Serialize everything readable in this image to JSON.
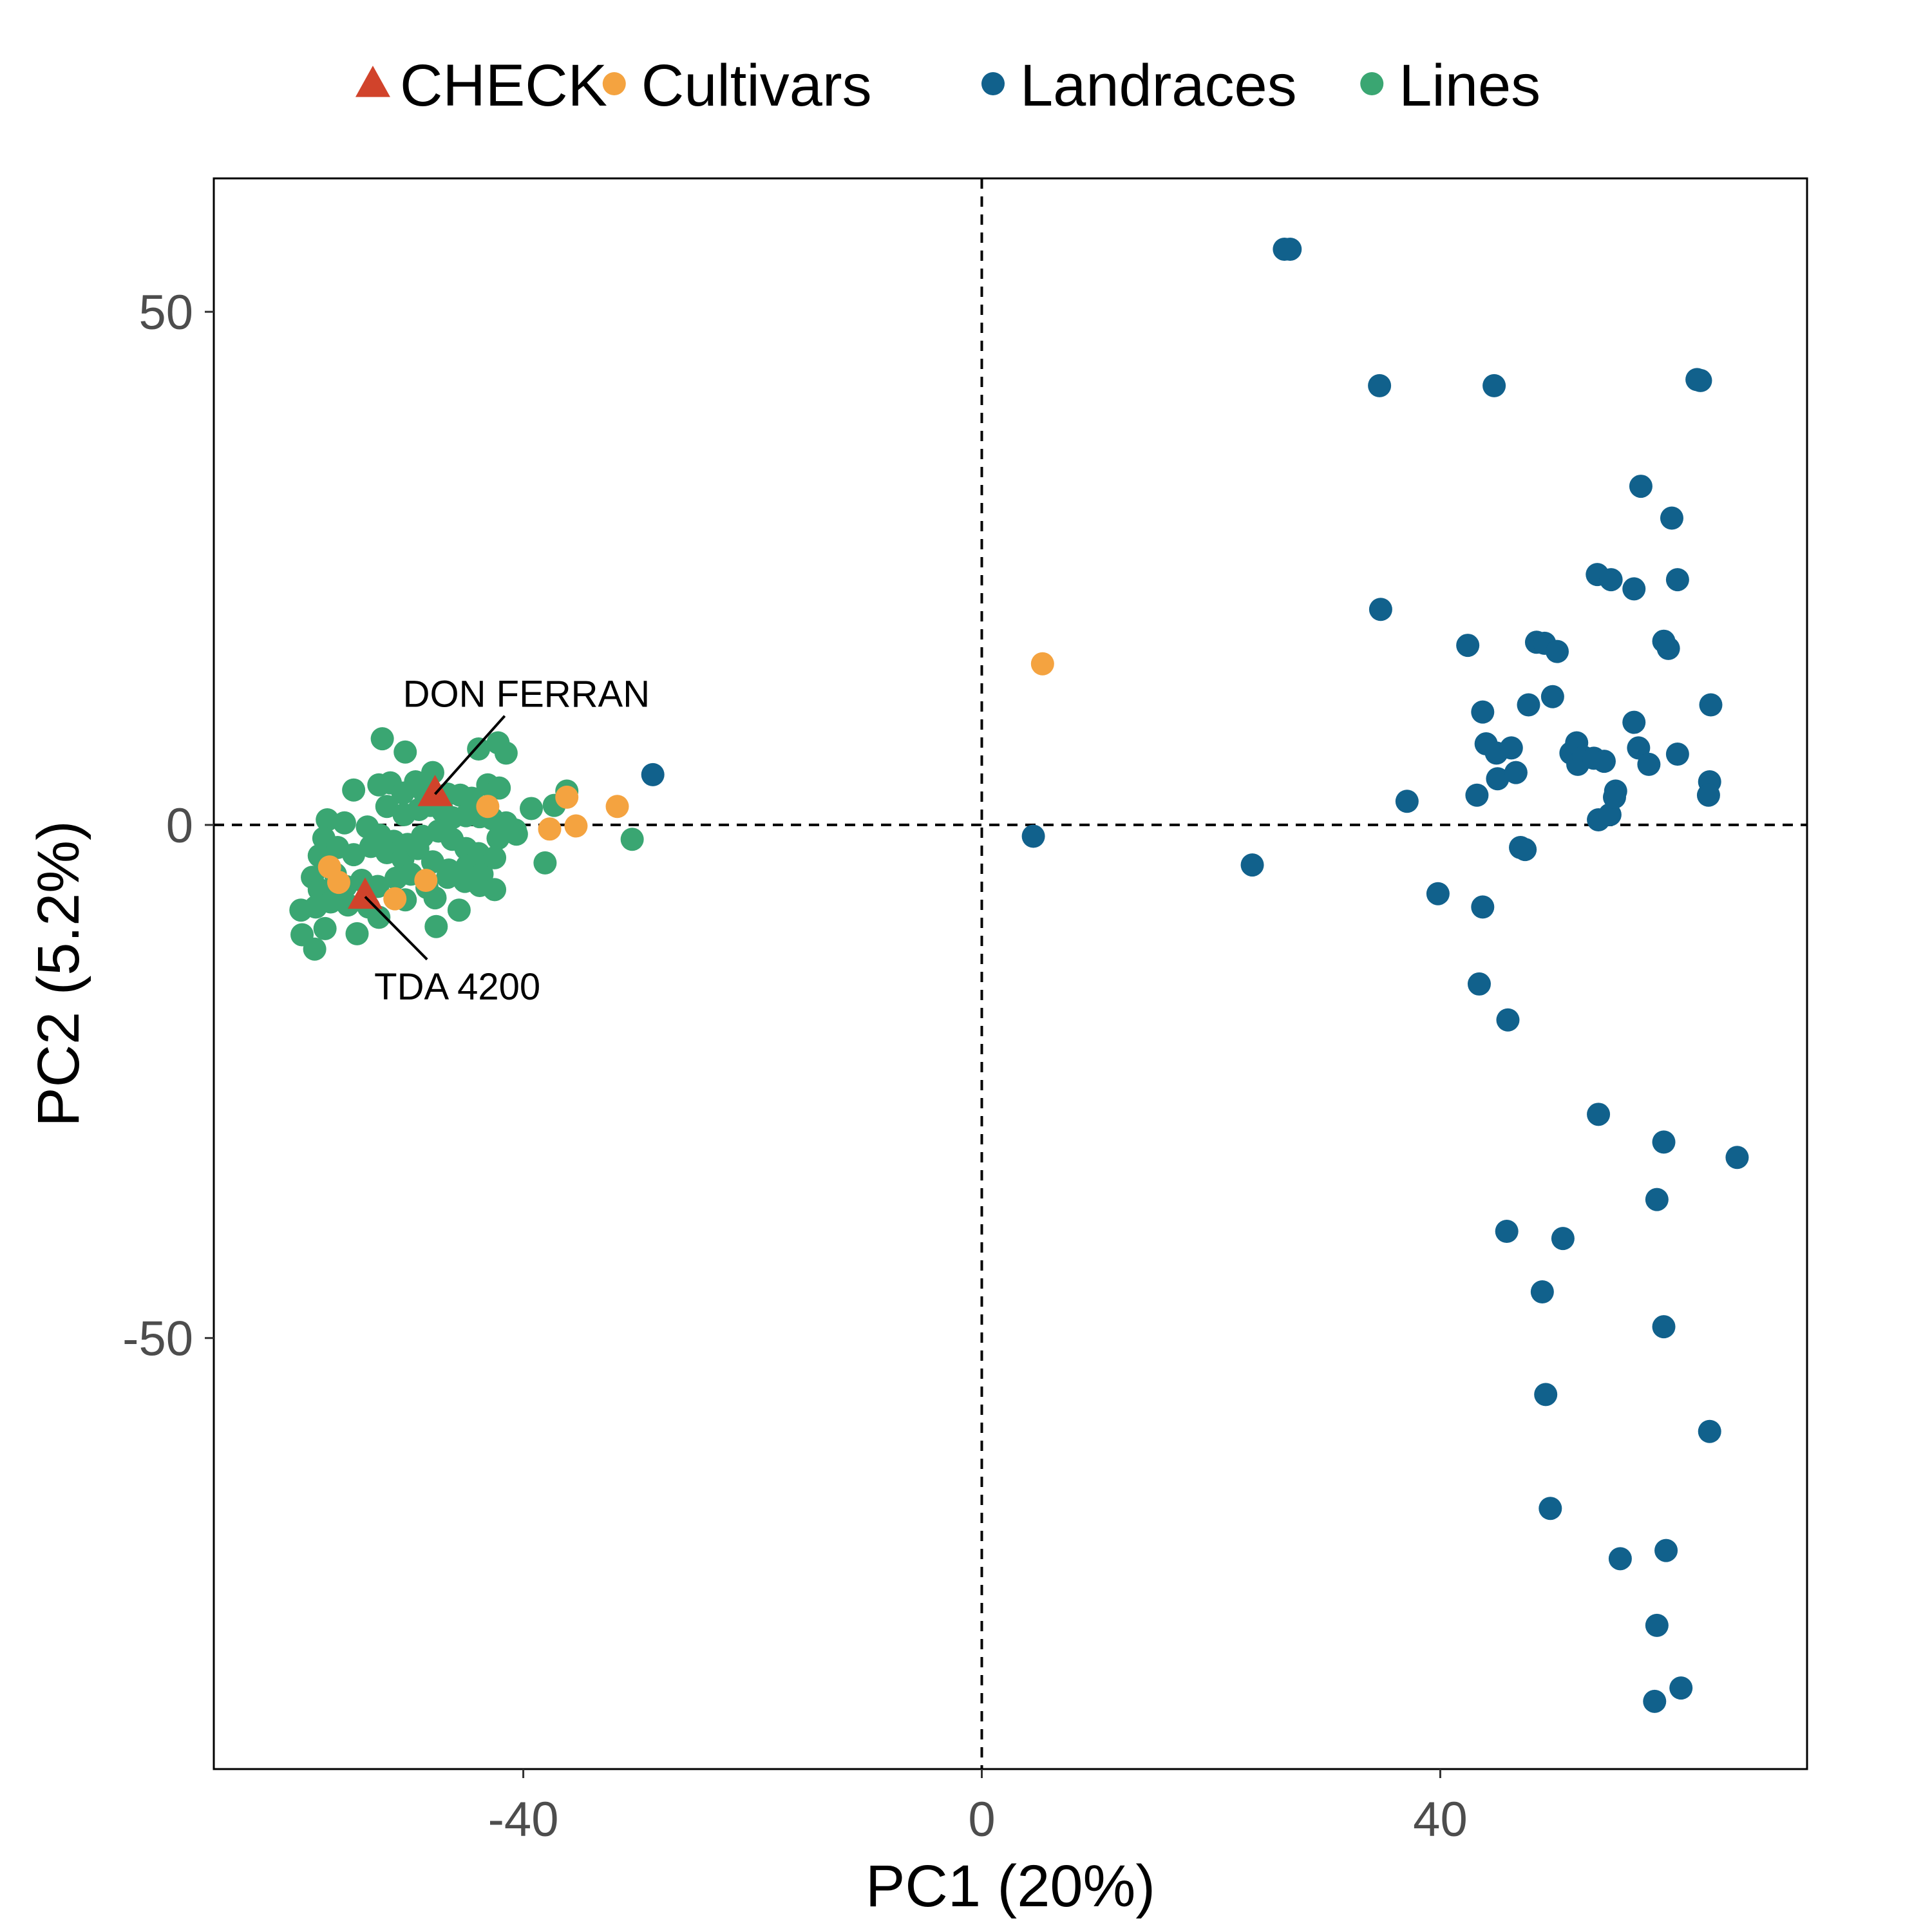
{
  "chart_data": {
    "type": "scatter",
    "title": "",
    "xlabel": "PC1 (20%)",
    "ylabel": "PC2 (5.2%)",
    "xlim": [
      -67,
      72
    ],
    "ylim": [
      -92,
      63
    ],
    "xticks": [
      -40,
      0,
      40
    ],
    "yticks": [
      -50,
      0,
      50
    ],
    "grid": false,
    "reference_lines": {
      "x": 0,
      "y": 0,
      "style": "dashed"
    },
    "legend": {
      "position": "top",
      "entries": [
        {
          "name": "CHECK",
          "shape": "triangle",
          "color": "#d1432b"
        },
        {
          "name": "Cultivars",
          "shape": "circle",
          "color": "#f4a340"
        },
        {
          "name": "Landraces",
          "shape": "circle",
          "color": "#11618c"
        },
        {
          "name": "Lines",
          "shape": "circle",
          "color": "#3aa672"
        }
      ]
    },
    "annotations": [
      {
        "text": "DON FERRAN",
        "x": -47.7,
        "y": 3.0,
        "label_x": -50.5,
        "label_y": 11.5
      },
      {
        "text": "TDA 4200",
        "x": -53.8,
        "y": -7.0,
        "label_x": -53.0,
        "label_y": -17.0
      }
    ],
    "series": [
      {
        "name": "CHECK",
        "shape": "triangle",
        "color": "#d1432b",
        "points": [
          [
            -47.7,
            3.0
          ],
          [
            -53.8,
            -7.0
          ]
        ]
      },
      {
        "name": "Cultivars",
        "shape": "circle",
        "color": "#f4a340",
        "points": [
          [
            5.3,
            15.7
          ],
          [
            -43.1,
            1.8
          ],
          [
            -36.2,
            2.7
          ],
          [
            -31.8,
            1.8
          ],
          [
            -37.7,
            -0.4
          ],
          [
            -35.4,
            -0.1
          ],
          [
            -56.9,
            -4.1
          ],
          [
            -56.1,
            -5.6
          ],
          [
            -51.2,
            -7.2
          ],
          [
            -48.5,
            -5.4
          ]
        ]
      },
      {
        "name": "Landraces",
        "shape": "circle",
        "color": "#11618c",
        "points": [
          [
            -28.7,
            4.9
          ],
          [
            4.5,
            -1.1
          ],
          [
            23.6,
            -3.9
          ],
          [
            26.4,
            56.1
          ],
          [
            26.9,
            56.1
          ],
          [
            34.7,
            42.8
          ],
          [
            34.8,
            21.0
          ],
          [
            44.7,
            42.8
          ],
          [
            62.4,
            43.4
          ],
          [
            62.7,
            43.3
          ],
          [
            37.1,
            2.3
          ],
          [
            39.8,
            -6.7
          ],
          [
            43.2,
            2.9
          ],
          [
            42.4,
            17.5
          ],
          [
            43.7,
            11.0
          ],
          [
            44.0,
            7.9
          ],
          [
            44.9,
            7.0
          ],
          [
            46.2,
            7.5
          ],
          [
            45.0,
            4.5
          ],
          [
            46.6,
            5.1
          ],
          [
            47.0,
            -2.2
          ],
          [
            47.4,
            -2.4
          ],
          [
            47.7,
            11.7
          ],
          [
            48.4,
            17.8
          ],
          [
            49.1,
            17.7
          ],
          [
            49.8,
            12.5
          ],
          [
            50.2,
            16.9
          ],
          [
            43.4,
            -15.5
          ],
          [
            43.7,
            -8.0
          ],
          [
            45.9,
            -19.0
          ],
          [
            51.4,
            7.0
          ],
          [
            51.9,
            8.0
          ],
          [
            52.0,
            5.9
          ],
          [
            52.5,
            6.6
          ],
          [
            53.4,
            6.5
          ],
          [
            54.3,
            6.2
          ],
          [
            56.9,
            10.0
          ],
          [
            57.3,
            7.5
          ],
          [
            55.3,
            3.3
          ],
          [
            53.8,
            0.5
          ],
          [
            54.8,
            1.0
          ],
          [
            55.2,
            2.7
          ],
          [
            53.7,
            24.4
          ],
          [
            54.9,
            23.9
          ],
          [
            56.9,
            23.0
          ],
          [
            58.2,
            5.9
          ],
          [
            59.5,
            17.9
          ],
          [
            59.9,
            17.2
          ],
          [
            57.5,
            33.0
          ],
          [
            60.2,
            29.9
          ],
          [
            60.7,
            6.9
          ],
          [
            63.6,
            11.7
          ],
          [
            63.5,
            4.2
          ],
          [
            63.4,
            2.9
          ],
          [
            60.7,
            23.9
          ],
          [
            53.8,
            -28.2
          ],
          [
            59.5,
            -30.9
          ],
          [
            65.9,
            -32.4
          ],
          [
            45.8,
            -39.6
          ],
          [
            58.9,
            -36.5
          ],
          [
            50.7,
            -40.3
          ],
          [
            48.9,
            -45.5
          ],
          [
            49.2,
            -55.5
          ],
          [
            59.5,
            -48.9
          ],
          [
            63.5,
            -59.1
          ],
          [
            49.6,
            -66.6
          ],
          [
            55.7,
            -71.5
          ],
          [
            59.7,
            -70.7
          ],
          [
            58.9,
            -78.0
          ],
          [
            58.7,
            -85.4
          ],
          [
            61.0,
            -84.1
          ]
        ]
      },
      {
        "name": "Lines",
        "shape": "circle",
        "color": "#3aa672",
        "points": [
          [
            -52.3,
            8.4
          ],
          [
            -50.3,
            7.1
          ],
          [
            -47.9,
            5.1
          ],
          [
            -43.9,
            7.4
          ],
          [
            -42.2,
            8.0
          ],
          [
            -41.5,
            7.0
          ],
          [
            -54.8,
            3.4
          ],
          [
            -52.6,
            3.9
          ],
          [
            -51.6,
            4.1
          ],
          [
            -50.5,
            3.1
          ],
          [
            -49.4,
            4.2
          ],
          [
            -48.7,
            3.3
          ],
          [
            -46.6,
            3.0
          ],
          [
            -45.5,
            2.9
          ],
          [
            -44.5,
            2.6
          ],
          [
            -43.1,
            3.9
          ],
          [
            -42.1,
            3.6
          ],
          [
            -51.9,
            1.8
          ],
          [
            -50.4,
            1.0
          ],
          [
            -49.1,
            1.5
          ],
          [
            -48.1,
            1.9
          ],
          [
            -47.0,
            1.3
          ],
          [
            -46.2,
            0.7
          ],
          [
            -45.0,
            0.9
          ],
          [
            -43.8,
            0.8
          ],
          [
            -42.7,
            0.6
          ],
          [
            -41.5,
            0.2
          ],
          [
            -40.7,
            -0.5
          ],
          [
            -39.3,
            1.6
          ],
          [
            -37.3,
            1.9
          ],
          [
            -36.2,
            3.3
          ],
          [
            -57.1,
            0.5
          ],
          [
            -55.6,
            0.2
          ],
          [
            -53.6,
            -0.2
          ],
          [
            -52.5,
            -1.0
          ],
          [
            -51.3,
            -1.6
          ],
          [
            -50.1,
            -1.9
          ],
          [
            -48.8,
            -1.1
          ],
          [
            -47.4,
            -0.6
          ],
          [
            -46.2,
            -1.4
          ],
          [
            -45.0,
            -2.3
          ],
          [
            -43.9,
            -2.8
          ],
          [
            -42.2,
            -1.3
          ],
          [
            -40.6,
            -0.9
          ],
          [
            -57.4,
            -1.3
          ],
          [
            -56.2,
            -2.2
          ],
          [
            -54.8,
            -2.9
          ],
          [
            -53.3,
            -2.1
          ],
          [
            -51.9,
            -2.7
          ],
          [
            -50.5,
            -3.3
          ],
          [
            -49.2,
            -2.3
          ],
          [
            -47.9,
            -3.6
          ],
          [
            -46.5,
            -4.4
          ],
          [
            -44.9,
            -4.0
          ],
          [
            -43.6,
            -4.8
          ],
          [
            -42.5,
            -3.2
          ],
          [
            -57.8,
            -3.0
          ],
          [
            -56.4,
            -4.8
          ],
          [
            -55.5,
            -6.0
          ],
          [
            -54.1,
            -5.4
          ],
          [
            -52.7,
            -6.0
          ],
          [
            -51.1,
            -5.2
          ],
          [
            -49.8,
            -4.8
          ],
          [
            -48.4,
            -6.1
          ],
          [
            -46.6,
            -5.1
          ],
          [
            -45.1,
            -5.5
          ],
          [
            -43.8,
            -5.9
          ],
          [
            -42.5,
            -6.3
          ],
          [
            -58.4,
            -5.1
          ],
          [
            -57.8,
            -6.3
          ],
          [
            -56.8,
            -7.5
          ],
          [
            -55.3,
            -7.8
          ],
          [
            -53.5,
            -8.0
          ],
          [
            -59.4,
            -8.3
          ],
          [
            -58.1,
            -8.0
          ],
          [
            -50.3,
            -7.3
          ],
          [
            -47.7,
            -7.1
          ],
          [
            -45.6,
            -8.3
          ],
          [
            -59.3,
            -10.7
          ],
          [
            -58.2,
            -12.1
          ],
          [
            -57.3,
            -10.1
          ],
          [
            -54.5,
            -10.6
          ],
          [
            -52.6,
            -9.0
          ],
          [
            -47.6,
            -9.9
          ],
          [
            -38.1,
            -3.7
          ],
          [
            -30.5,
            -1.4
          ]
        ]
      }
    ]
  }
}
